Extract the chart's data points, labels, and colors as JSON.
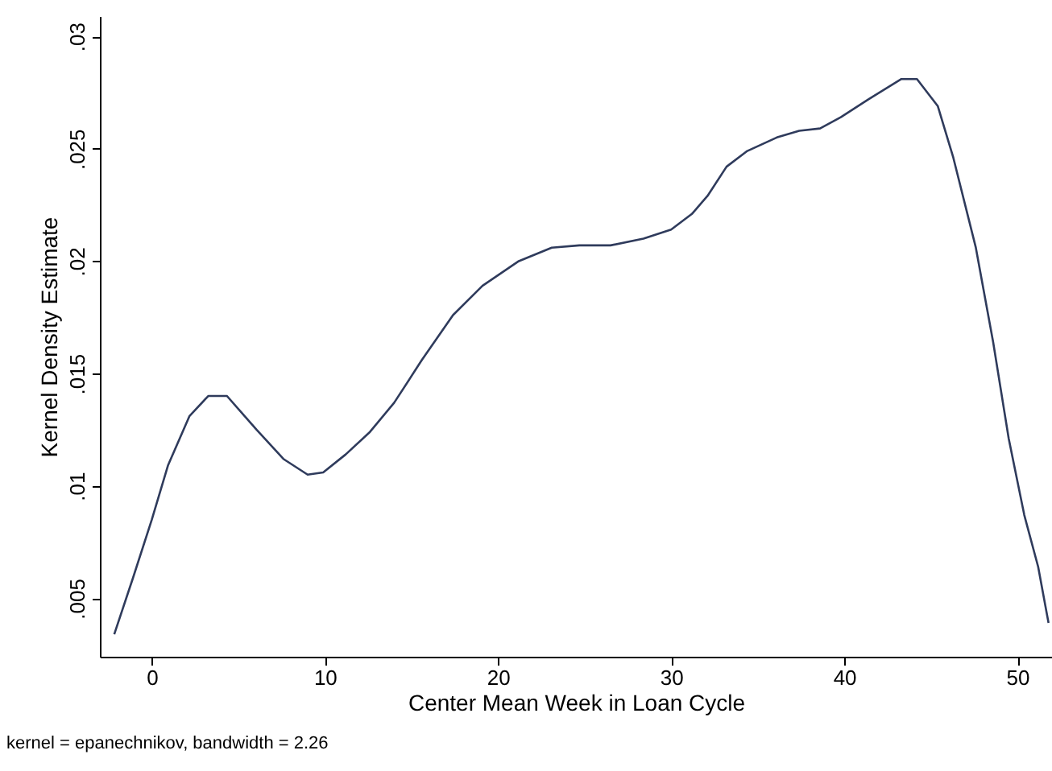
{
  "chart_data": {
    "type": "line",
    "xlabel": "Center Mean Week in Loan Cycle",
    "ylabel": "Kernel Density Estimate",
    "annotations": [
      "kernel = epanechnikov, bandwidth = 2.26"
    ],
    "x": [
      -2.17,
      -1.09,
      0,
      0.93,
      2.17,
      3.26,
      4.34,
      6.05,
      7.6,
      9.0,
      9.9,
      11.2,
      12.6,
      14.0,
      15.6,
      17.4,
      19.1,
      21.2,
      23.1,
      24.7,
      26.5,
      28.4,
      30.0,
      31.2,
      32.1,
      33.2,
      34.4,
      36.1,
      37.4,
      38.6,
      39.8,
      41.4,
      43.3,
      44.2,
      45.4,
      46.3,
      47.6,
      48.6,
      49.5,
      50.4,
      51.2,
      51.8
    ],
    "series": [
      {
        "color": "#2f3b5c",
        "values": [
          0.0034,
          0.0059,
          0.0085,
          0.0109,
          0.0131,
          0.014,
          0.014,
          0.0125,
          0.0112,
          0.0105,
          0.0106,
          0.0114,
          0.0124,
          0.0137,
          0.0156,
          0.0176,
          0.0189,
          0.02,
          0.0206,
          0.0207,
          0.0207,
          0.021,
          0.0214,
          0.0221,
          0.0229,
          0.0242,
          0.0249,
          0.0255,
          0.0258,
          0.0259,
          0.0264,
          0.0272,
          0.0281,
          0.0281,
          0.0269,
          0.0246,
          0.0206,
          0.0164,
          0.0121,
          0.0087,
          0.0064,
          0.0039
        ]
      }
    ],
    "xlim": [
      -3,
      52
    ],
    "xticks": [
      0,
      10,
      20,
      30,
      40,
      50
    ],
    "ylim": [
      0.0024,
      0.0309
    ],
    "yticks": [
      {
        "value": 0.005,
        "label": ".005"
      },
      {
        "value": 0.01,
        "label": ".01"
      },
      {
        "value": 0.015,
        "label": ".015"
      },
      {
        "value": 0.02,
        "label": ".02"
      },
      {
        "value": 0.025,
        "label": ".025"
      },
      {
        "value": 0.03,
        "label": ".03"
      }
    ],
    "grid": false,
    "marker": "none",
    "line_style": "solid"
  }
}
